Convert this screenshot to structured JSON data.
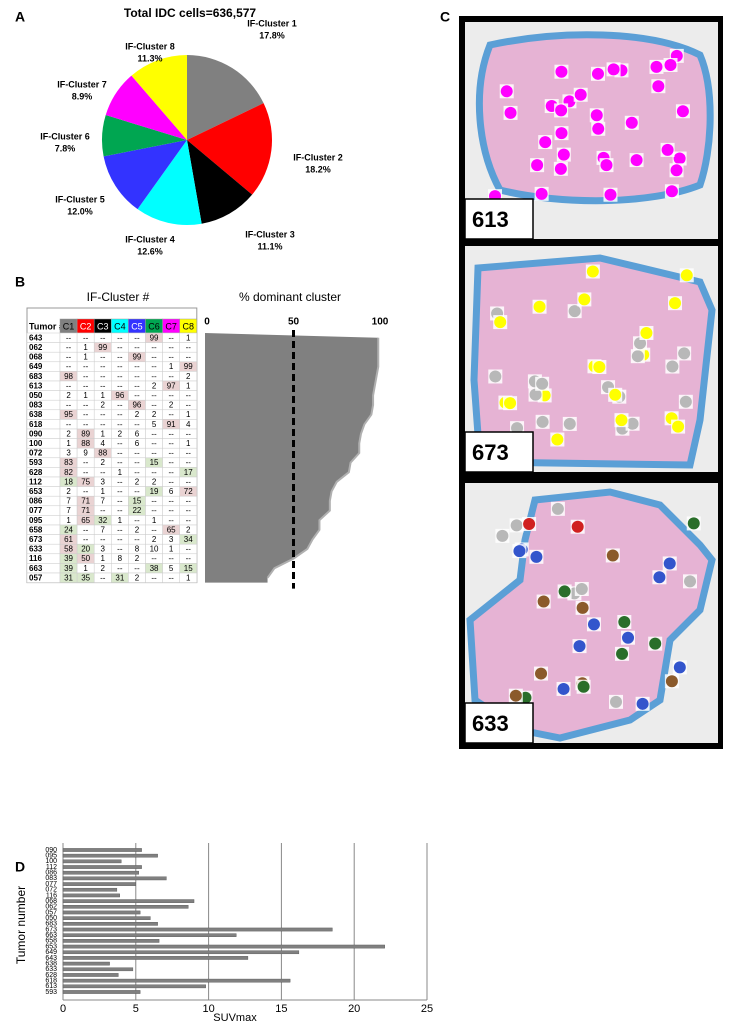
{
  "panel_labels": [
    "A",
    "B",
    "C",
    "D"
  ],
  "chart_data": [
    {
      "type": "pie",
      "title": "Total IDC cells=636,577",
      "categories": [
        "IF-Cluster 1",
        "IF-Cluster 2",
        "IF-Cluster 3",
        "IF-Cluster 4",
        "IF-Cluster 5",
        "IF-Cluster 6",
        "IF-Cluster 7",
        "IF-Cluster 8"
      ],
      "values": [
        17.8,
        18.2,
        11.1,
        12.6,
        12.0,
        7.8,
        8.9,
        11.3
      ],
      "value_labels": [
        "17.8%",
        "18.2%",
        "11.1%",
        "12.6%",
        "12.0%",
        "7.8%",
        "8.9%",
        "11.3%"
      ],
      "colors": [
        "#808080",
        "#ff0000",
        "#000000",
        "#00ffff",
        "#3333ff",
        "#00a651",
        "#ff00ff",
        "#ffff00"
      ]
    },
    {
      "type": "area",
      "title": "% dominant cluster",
      "values": [
        99,
        99,
        99,
        99,
        98,
        97,
        96,
        96,
        95,
        91,
        89,
        88,
        88,
        83,
        82,
        75,
        72,
        71,
        71,
        65,
        65,
        61,
        58,
        50,
        39,
        35
      ],
      "color": "#808080",
      "xlim": [
        0,
        100
      ],
      "xticks": [
        0,
        50,
        100
      ],
      "ref_line": 50
    },
    {
      "type": "bar",
      "orientation": "horizontal",
      "categories": [
        "090",
        "095",
        "100",
        "112",
        "086",
        "083",
        "077",
        "072",
        "116",
        "068",
        "062",
        "057",
        "050",
        "683",
        "673",
        "663",
        "658",
        "653",
        "649",
        "643",
        "638",
        "633",
        "628",
        "618",
        "613",
        "593"
      ],
      "values": [
        5.4,
        6.5,
        4.0,
        5.4,
        5.2,
        7.1,
        5.0,
        3.7,
        3.9,
        9.0,
        8.6,
        5.3,
        6.0,
        6.5,
        18.5,
        11.9,
        6.6,
        22.1,
        16.2,
        12.7,
        3.2,
        4.8,
        3.8,
        15.6,
        9.8,
        5.3
      ],
      "color": "#808080",
      "xlim": [
        0,
        25
      ],
      "xticks": [
        0,
        5,
        10,
        15,
        20,
        25
      ],
      "xlabel": "SUVmax",
      "ylabel": "Tumor number",
      "grid": true
    }
  ],
  "table": {
    "title": "IF-Cluster #",
    "columns": [
      "Tumor #",
      "C1",
      "C2",
      "C3",
      "C4",
      "C5",
      "C6",
      "C7",
      "C8"
    ],
    "rows": [
      [
        "643",
        "--",
        "--",
        "--",
        "--",
        "--",
        "99",
        "--",
        "1"
      ],
      [
        "062",
        "--",
        "1",
        "99",
        "--",
        "--",
        "--",
        "--",
        "--"
      ],
      [
        "068",
        "--",
        "1",
        "--",
        "--",
        "99",
        "--",
        "--",
        "--"
      ],
      [
        "649",
        "--",
        "--",
        "--",
        "--",
        "--",
        "--",
        "1",
        "99"
      ],
      [
        "683",
        "98",
        "--",
        "--",
        "--",
        "--",
        "--",
        "--",
        "2"
      ],
      [
        "613",
        "--",
        "--",
        "--",
        "--",
        "--",
        "2",
        "97",
        "1"
      ],
      [
        "050",
        "2",
        "1",
        "1",
        "96",
        "--",
        "--",
        "--",
        "--"
      ],
      [
        "083",
        "--",
        "--",
        "2",
        "--",
        "96",
        "--",
        "2",
        "--"
      ],
      [
        "638",
        "95",
        "--",
        "--",
        "--",
        "2",
        "2",
        "--",
        "1"
      ],
      [
        "618",
        "--",
        "--",
        "--",
        "--",
        "--",
        "5",
        "91",
        "4"
      ],
      [
        "090",
        "2",
        "89",
        "1",
        "2",
        "6",
        "--",
        "--",
        "--"
      ],
      [
        "100",
        "1",
        "88",
        "4",
        "--",
        "6",
        "--",
        "--",
        "1"
      ],
      [
        "072",
        "3",
        "9",
        "88",
        "--",
        "--",
        "--",
        "--",
        "--"
      ],
      [
        "593",
        "83",
        "--",
        "2",
        "--",
        "--",
        "15",
        "--",
        "--"
      ],
      [
        "628",
        "82",
        "--",
        "--",
        "1",
        "--",
        "--",
        "--",
        "17"
      ],
      [
        "112",
        "18",
        "75",
        "3",
        "--",
        "2",
        "2",
        "--",
        "--"
      ],
      [
        "653",
        "2",
        "--",
        "1",
        "--",
        "--",
        "19",
        "6",
        "72"
      ],
      [
        "086",
        "7",
        "71",
        "7",
        "--",
        "15",
        "--",
        "--",
        "--"
      ],
      [
        "077",
        "7",
        "71",
        "--",
        "--",
        "22",
        "--",
        "--",
        "--"
      ],
      [
        "095",
        "1",
        "65",
        "32",
        "1",
        "--",
        "1",
        "--",
        "--"
      ],
      [
        "658",
        "24",
        "--",
        "7",
        "--",
        "2",
        "--",
        "65",
        "2"
      ],
      [
        "673",
        "61",
        "--",
        "--",
        "--",
        "--",
        "2",
        "3",
        "34"
      ],
      [
        "633",
        "58",
        "20",
        "3",
        "--",
        "8",
        "10",
        "1",
        "--"
      ],
      [
        "116",
        "39",
        "50",
        "1",
        "8",
        "2",
        "--",
        "--",
        "--"
      ],
      [
        "663",
        "39",
        "1",
        "2",
        "--",
        "--",
        "38",
        "5",
        "15"
      ],
      [
        "057",
        "31",
        "35",
        "--",
        "31",
        "2",
        "--",
        "--",
        "1"
      ]
    ]
  },
  "images": [
    {
      "label": "613"
    },
    {
      "label": "673"
    },
    {
      "label": "633"
    }
  ]
}
